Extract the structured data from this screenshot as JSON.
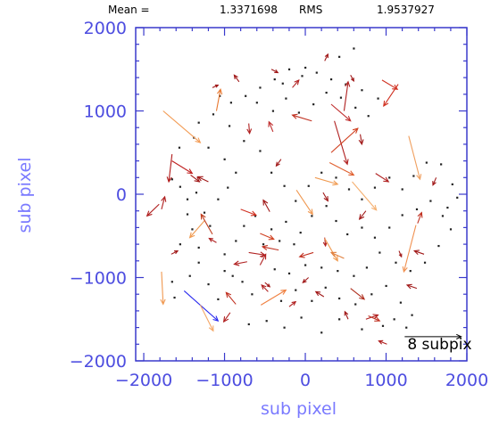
{
  "header": {
    "mean_label": "Mean =",
    "mean_value": "1.3371698",
    "rms_label": "RMS",
    "rms_value": "1.9537927"
  },
  "colors": {
    "frame": "#3a3acc",
    "tick_label": "#4d4de0",
    "axis_title": "#7a7aff",
    "scale_arrow": "#000000",
    "highlight_arrow": "#2222ee"
  },
  "chart_data": {
    "type": "vector-field",
    "xlabel": "sub pixel",
    "ylabel": "sub pixel",
    "xlim": [
      -2100,
      2000
    ],
    "ylim": [
      -2000,
      2000
    ],
    "xticks": [
      "-2000",
      "-1000",
      "0",
      "1000",
      "2000"
    ],
    "yticks": [
      "-2000",
      "-1000",
      "0",
      "1000",
      "2000"
    ],
    "scale_label": "8 subpix",
    "scale_arrow": {
      "x": 1230,
      "y": -1710,
      "dx": 700,
      "dy": 0
    },
    "vectors": [
      {
        "x": -1760,
        "y": 1000,
        "dx": 460,
        "dy": -380,
        "c": "#f39c55"
      },
      {
        "x": -1100,
        "y": 1000,
        "dx": 50,
        "dy": 260,
        "c": "#e87830"
      },
      {
        "x": 950,
        "y": 1370,
        "dx": 190,
        "dy": -110,
        "c": "#d03020"
      },
      {
        "x": 1150,
        "y": 1320,
        "dx": -180,
        "dy": -260,
        "c": "#d03020"
      },
      {
        "x": 1280,
        "y": 700,
        "dx": 140,
        "dy": -520,
        "c": "#f0a060"
      },
      {
        "x": 480,
        "y": 1000,
        "dx": 50,
        "dy": 350,
        "c": "#b02020"
      },
      {
        "x": -1650,
        "y": 480,
        "dx": -40,
        "dy": -330,
        "c": "#b01818"
      },
      {
        "x": -1650,
        "y": 400,
        "dx": 250,
        "dy": -150,
        "c": "#c02020"
      },
      {
        "x": 320,
        "y": 1080,
        "dx": 240,
        "dy": -200,
        "c": "#c03030"
      },
      {
        "x": 360,
        "y": 880,
        "dx": 160,
        "dy": -520,
        "c": "#b02020"
      },
      {
        "x": 320,
        "y": 500,
        "dx": 330,
        "dy": 290,
        "c": "#d04020"
      },
      {
        "x": 300,
        "y": 380,
        "dx": 300,
        "dy": -150,
        "c": "#e06030"
      },
      {
        "x": 80,
        "y": 880,
        "dx": -240,
        "dy": 70,
        "c": "#c03020"
      },
      {
        "x": 120,
        "y": 200,
        "dx": 280,
        "dy": -80,
        "c": "#f09a50"
      },
      {
        "x": 580,
        "y": 150,
        "dx": 300,
        "dy": -340,
        "c": "#f5b070"
      },
      {
        "x": 870,
        "y": 250,
        "dx": 160,
        "dy": -100,
        "c": "#b02020"
      },
      {
        "x": 1370,
        "y": -370,
        "dx": -150,
        "dy": -560,
        "c": "#f09050"
      },
      {
        "x": 1390,
        "y": -350,
        "dx": 50,
        "dy": 130,
        "c": "#c03020"
      },
      {
        "x": -110,
        "y": 50,
        "dx": 200,
        "dy": -290,
        "c": "#f09850"
      },
      {
        "x": -1250,
        "y": -320,
        "dx": -180,
        "dy": -200,
        "c": "#f09a50"
      },
      {
        "x": -1150,
        "y": -480,
        "dx": -140,
        "dy": 240,
        "c": "#c04020"
      },
      {
        "x": -800,
        "y": -180,
        "dx": 190,
        "dy": -70,
        "c": "#d03020"
      },
      {
        "x": -560,
        "y": -470,
        "dx": 170,
        "dy": -70,
        "c": "#d04020"
      },
      {
        "x": -330,
        "y": -670,
        "dx": -200,
        "dy": 40,
        "c": "#c03020"
      },
      {
        "x": -700,
        "y": -700,
        "dx": 200,
        "dy": -30,
        "c": "#b02020"
      },
      {
        "x": 100,
        "y": -700,
        "dx": -170,
        "dy": -50,
        "c": "#c03020"
      },
      {
        "x": 240,
        "y": -520,
        "dx": 10,
        "dy": -100,
        "c": "#b02020"
      },
      {
        "x": 240,
        "y": -530,
        "dx": 160,
        "dy": -270,
        "c": "#f09a50"
      },
      {
        "x": 480,
        "y": -770,
        "dx": -160,
        "dy": 70,
        "c": "#e08040"
      },
      {
        "x": -1780,
        "y": -930,
        "dx": 20,
        "dy": -390,
        "c": "#f09850"
      },
      {
        "x": -1500,
        "y": -1160,
        "dx": 420,
        "dy": -360,
        "c": "#2828ee"
      },
      {
        "x": -1300,
        "y": -1330,
        "dx": 160,
        "dy": -310,
        "c": "#f5a868"
      },
      {
        "x": -550,
        "y": -1330,
        "dx": 310,
        "dy": 180,
        "c": "#f08040"
      },
      {
        "x": -860,
        "y": -1320,
        "dx": -120,
        "dy": 140,
        "c": "#c03020"
      },
      {
        "x": -930,
        "y": -1420,
        "dx": -80,
        "dy": -110,
        "c": "#b02020"
      },
      {
        "x": 560,
        "y": -1130,
        "dx": 170,
        "dy": -130,
        "c": "#b03020"
      },
      {
        "x": 750,
        "y": -1500,
        "dx": 150,
        "dy": 50,
        "c": "#b02020"
      },
      {
        "x": 780,
        "y": -1460,
        "dx": 140,
        "dy": -60,
        "c": "#c03020"
      },
      {
        "x": 1010,
        "y": -1800,
        "dx": -100,
        "dy": 40,
        "c": "#b02020"
      },
      {
        "x": -460,
        "y": -1170,
        "dx": -80,
        "dy": 80,
        "c": "#b02020"
      },
      {
        "x": -400,
        "y": 750,
        "dx": -50,
        "dy": 120,
        "c": "#c03030"
      },
      {
        "x": -1810,
        "y": -120,
        "dx": -150,
        "dy": -140,
        "c": "#b02020"
      },
      {
        "x": -1780,
        "y": -180,
        "dx": 40,
        "dy": 150,
        "c": "#b02020"
      },
      {
        "x": -1420,
        "y": 230,
        "dx": 110,
        "dy": -80,
        "c": "#a01818"
      },
      {
        "x": -1200,
        "y": 150,
        "dx": -130,
        "dy": 60,
        "c": "#a01818"
      },
      {
        "x": -700,
        "y": 850,
        "dx": 10,
        "dy": -120,
        "c": "#b02020"
      },
      {
        "x": -440,
        "y": -210,
        "dx": -80,
        "dy": 140,
        "c": "#a01818"
      },
      {
        "x": -720,
        "y": -810,
        "dx": -160,
        "dy": -30,
        "c": "#b02020"
      },
      {
        "x": -1100,
        "y": -580,
        "dx": -90,
        "dy": 50,
        "c": "#b02020"
      },
      {
        "x": -560,
        "y": -850,
        "dx": 70,
        "dy": 130,
        "c": "#b02020"
      },
      {
        "x": -500,
        "y": -1060,
        "dx": 60,
        "dy": -50,
        "c": "#a01818"
      },
      {
        "x": -1660,
        "y": -720,
        "dx": 80,
        "dy": 40,
        "c": "#a01818"
      },
      {
        "x": -200,
        "y": -1350,
        "dx": 80,
        "dy": 60,
        "c": "#b02020"
      },
      {
        "x": 230,
        "y": -1230,
        "dx": -100,
        "dy": 60,
        "c": "#a01818"
      },
      {
        "x": 530,
        "y": -1500,
        "dx": -40,
        "dy": 90,
        "c": "#a01818"
      },
      {
        "x": 1380,
        "y": -1130,
        "dx": -120,
        "dy": 40,
        "c": "#a01818"
      },
      {
        "x": 1470,
        "y": -720,
        "dx": -120,
        "dy": 40,
        "c": "#a01818"
      },
      {
        "x": 1160,
        "y": -680,
        "dx": 30,
        "dy": -70,
        "c": "#a01818"
      },
      {
        "x": 750,
        "y": -200,
        "dx": -80,
        "dy": -100,
        "c": "#a01818"
      },
      {
        "x": -160,
        "y": 1280,
        "dx": 80,
        "dy": 90,
        "c": "#b02020"
      },
      {
        "x": -820,
        "y": 1350,
        "dx": -60,
        "dy": 80,
        "c": "#a01818"
      },
      {
        "x": -420,
        "y": 1500,
        "dx": 80,
        "dy": -40,
        "c": "#a01818"
      },
      {
        "x": 560,
        "y": 1430,
        "dx": 40,
        "dy": -70,
        "c": "#a01818"
      },
      {
        "x": 240,
        "y": 1600,
        "dx": 40,
        "dy": 80,
        "c": "#a01818"
      },
      {
        "x": -1150,
        "y": 1280,
        "dx": 70,
        "dy": 30,
        "c": "#a01818"
      },
      {
        "x": 220,
        "y": 20,
        "dx": 60,
        "dy": -100,
        "c": "#a01818"
      },
      {
        "x": 1620,
        "y": 200,
        "dx": -40,
        "dy": -90,
        "c": "#a01818"
      },
      {
        "x": -300,
        "y": 420,
        "dx": -60,
        "dy": -80,
        "c": "#a01818"
      },
      {
        "x": 680,
        "y": 720,
        "dx": 20,
        "dy": -120,
        "c": "#a01818"
      },
      {
        "x": 40,
        "y": -1000,
        "dx": -70,
        "dy": -60,
        "c": "#a01818"
      }
    ],
    "dots": [
      [
        -1650,
        180
      ],
      [
        -1550,
        90
      ],
      [
        -1460,
        -60
      ],
      [
        -1350,
        20
      ],
      [
        -1250,
        -220
      ],
      [
        -1400,
        -420
      ],
      [
        -1550,
        -600
      ],
      [
        -1320,
        -820
      ],
      [
        -1650,
        -1050
      ],
      [
        -1430,
        -980
      ],
      [
        -1200,
        -1080
      ],
      [
        -1000,
        -920
      ],
      [
        -780,
        -1050
      ],
      [
        -660,
        -1200
      ],
      [
        -300,
        -1280
      ],
      [
        -120,
        -1150
      ],
      [
        80,
        -1280
      ],
      [
        250,
        -1120
      ],
      [
        420,
        -1250
      ],
      [
        620,
        -1320
      ],
      [
        820,
        -1200
      ],
      [
        1000,
        -1100
      ],
      [
        1180,
        -1300
      ],
      [
        1320,
        -1450
      ],
      [
        960,
        -1580
      ],
      [
        700,
        -1620
      ],
      [
        420,
        -1500
      ],
      [
        200,
        -1660
      ],
      [
        -50,
        -1480
      ],
      [
        -260,
        -1600
      ],
      [
        -480,
        -1520
      ],
      [
        -700,
        -1560
      ],
      [
        -1080,
        -1260
      ],
      [
        -900,
        -980
      ],
      [
        -1000,
        -720
      ],
      [
        -860,
        -560
      ],
      [
        -760,
        -380
      ],
      [
        -620,
        -260
      ],
      [
        -420,
        -420
      ],
      [
        -240,
        -330
      ],
      [
        -60,
        -460
      ],
      [
        80,
        -260
      ],
      [
        260,
        -140
      ],
      [
        380,
        -320
      ],
      [
        520,
        -480
      ],
      [
        700,
        -400
      ],
      [
        860,
        -520
      ],
      [
        1040,
        -400
      ],
      [
        1200,
        -250
      ],
      [
        1380,
        -180
      ],
      [
        1550,
        -80
      ],
      [
        1700,
        -260
      ],
      [
        1800,
        -420
      ],
      [
        1650,
        -620
      ],
      [
        1480,
        -820
      ],
      [
        1300,
        -920
      ],
      [
        1120,
        -820
      ],
      [
        920,
        -700
      ],
      [
        760,
        -880
      ],
      [
        600,
        -980
      ],
      [
        400,
        -920
      ],
      [
        200,
        -880
      ],
      [
        0,
        -850
      ],
      [
        -200,
        -950
      ],
      [
        -380,
        -900
      ],
      [
        -1180,
        -380
      ],
      [
        -1080,
        -60
      ],
      [
        -960,
        80
      ],
      [
        -860,
        260
      ],
      [
        -1000,
        420
      ],
      [
        -1200,
        560
      ],
      [
        -1380,
        680
      ],
      [
        -1560,
        560
      ],
      [
        -1320,
        860
      ],
      [
        -1140,
        960
      ],
      [
        -940,
        820
      ],
      [
        -760,
        640
      ],
      [
        -560,
        520
      ],
      [
        -420,
        260
      ],
      [
        -260,
        100
      ],
      [
        -120,
        -80
      ],
      [
        40,
        100
      ],
      [
        200,
        260
      ],
      [
        380,
        200
      ],
      [
        540,
        60
      ],
      [
        700,
        -60
      ],
      [
        860,
        80
      ],
      [
        1040,
        200
      ],
      [
        1200,
        60
      ],
      [
        1340,
        220
      ],
      [
        1500,
        380
      ],
      [
        1680,
        360
      ],
      [
        1820,
        120
      ],
      [
        1880,
        -40
      ],
      [
        1760,
        -160
      ],
      [
        -600,
        1100
      ],
      [
        -400,
        1000
      ],
      [
        -240,
        1150
      ],
      [
        -80,
        980
      ],
      [
        100,
        1080
      ],
      [
        260,
        1220
      ],
      [
        440,
        1160
      ],
      [
        620,
        1040
      ],
      [
        780,
        940
      ],
      [
        900,
        1150
      ],
      [
        700,
        1250
      ],
      [
        500,
        1320
      ],
      [
        320,
        1380
      ],
      [
        140,
        1460
      ],
      [
        -40,
        1420
      ],
      [
        -200,
        1500
      ],
      [
        -380,
        1380
      ],
      [
        -560,
        1280
      ],
      [
        -740,
        1180
      ],
      [
        -920,
        1100
      ],
      [
        -1060,
        1180
      ],
      [
        600,
        1750
      ],
      [
        420,
        1650
      ],
      [
        0,
        1520
      ],
      [
        -280,
        1330
      ],
      [
        -520,
        -600
      ],
      [
        -320,
        -560
      ],
      [
        -140,
        -600
      ],
      [
        -1320,
        -640
      ],
      [
        -1460,
        -240
      ],
      [
        1100,
        -1500
      ],
      [
        1250,
        -1600
      ],
      [
        -1620,
        -1240
      ]
    ]
  }
}
